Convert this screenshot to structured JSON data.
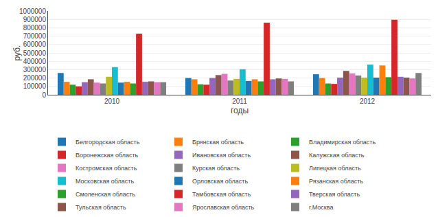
{
  "chart_data": {
    "type": "bar",
    "categories": [
      "2010",
      "2011",
      "2012"
    ],
    "series": [
      {
        "name": "Белгородская область",
        "values": [
          260000,
          200000,
          245000
        ]
      },
      {
        "name": "Брянская область",
        "values": [
          155000,
          185000,
          200000
        ]
      },
      {
        "name": "Владимирская область",
        "values": [
          120000,
          125000,
          135000
        ]
      },
      {
        "name": "Воронежская область",
        "values": [
          100000,
          120000,
          130000
        ]
      },
      {
        "name": "Ивановская область",
        "values": [
          150000,
          200000,
          205000
        ]
      },
      {
        "name": "Калужская область",
        "values": [
          185000,
          235000,
          285000
        ]
      },
      {
        "name": "Костромская область",
        "values": [
          145000,
          250000,
          255000
        ]
      },
      {
        "name": "Курская область",
        "values": [
          135000,
          170000,
          230000
        ]
      },
      {
        "name": "Липецкая область",
        "values": [
          215000,
          190000,
          205000
        ]
      },
      {
        "name": "Московская область",
        "values": [
          330000,
          305000,
          360000
        ]
      },
      {
        "name": "Орловская область",
        "values": [
          145000,
          165000,
          205000
        ]
      },
      {
        "name": "Рязанская область",
        "values": [
          155000,
          185000,
          350000
        ]
      },
      {
        "name": "Смоленская область",
        "values": [
          135000,
          160000,
          210000
        ]
      },
      {
        "name": "Тамбовская область",
        "values": [
          730000,
          860000,
          895000
        ]
      },
      {
        "name": "Тверская область",
        "values": [
          155000,
          185000,
          215000
        ]
      },
      {
        "name": "Тульская область",
        "values": [
          160000,
          195000,
          205000
        ]
      },
      {
        "name": "Ярославская область",
        "values": [
          150000,
          190000,
          195000
        ]
      },
      {
        "name": "г.Москва",
        "values": [
          150000,
          160000,
          260000
        ]
      }
    ],
    "xlabel": "годы",
    "ylabel": "руб.",
    "ylim": [
      0,
      1000000
    ],
    "yticks": [
      0,
      100000,
      200000,
      300000,
      400000,
      500000,
      600000,
      700000,
      800000,
      900000,
      1000000
    ],
    "grid": true,
    "legend": "bottom"
  }
}
